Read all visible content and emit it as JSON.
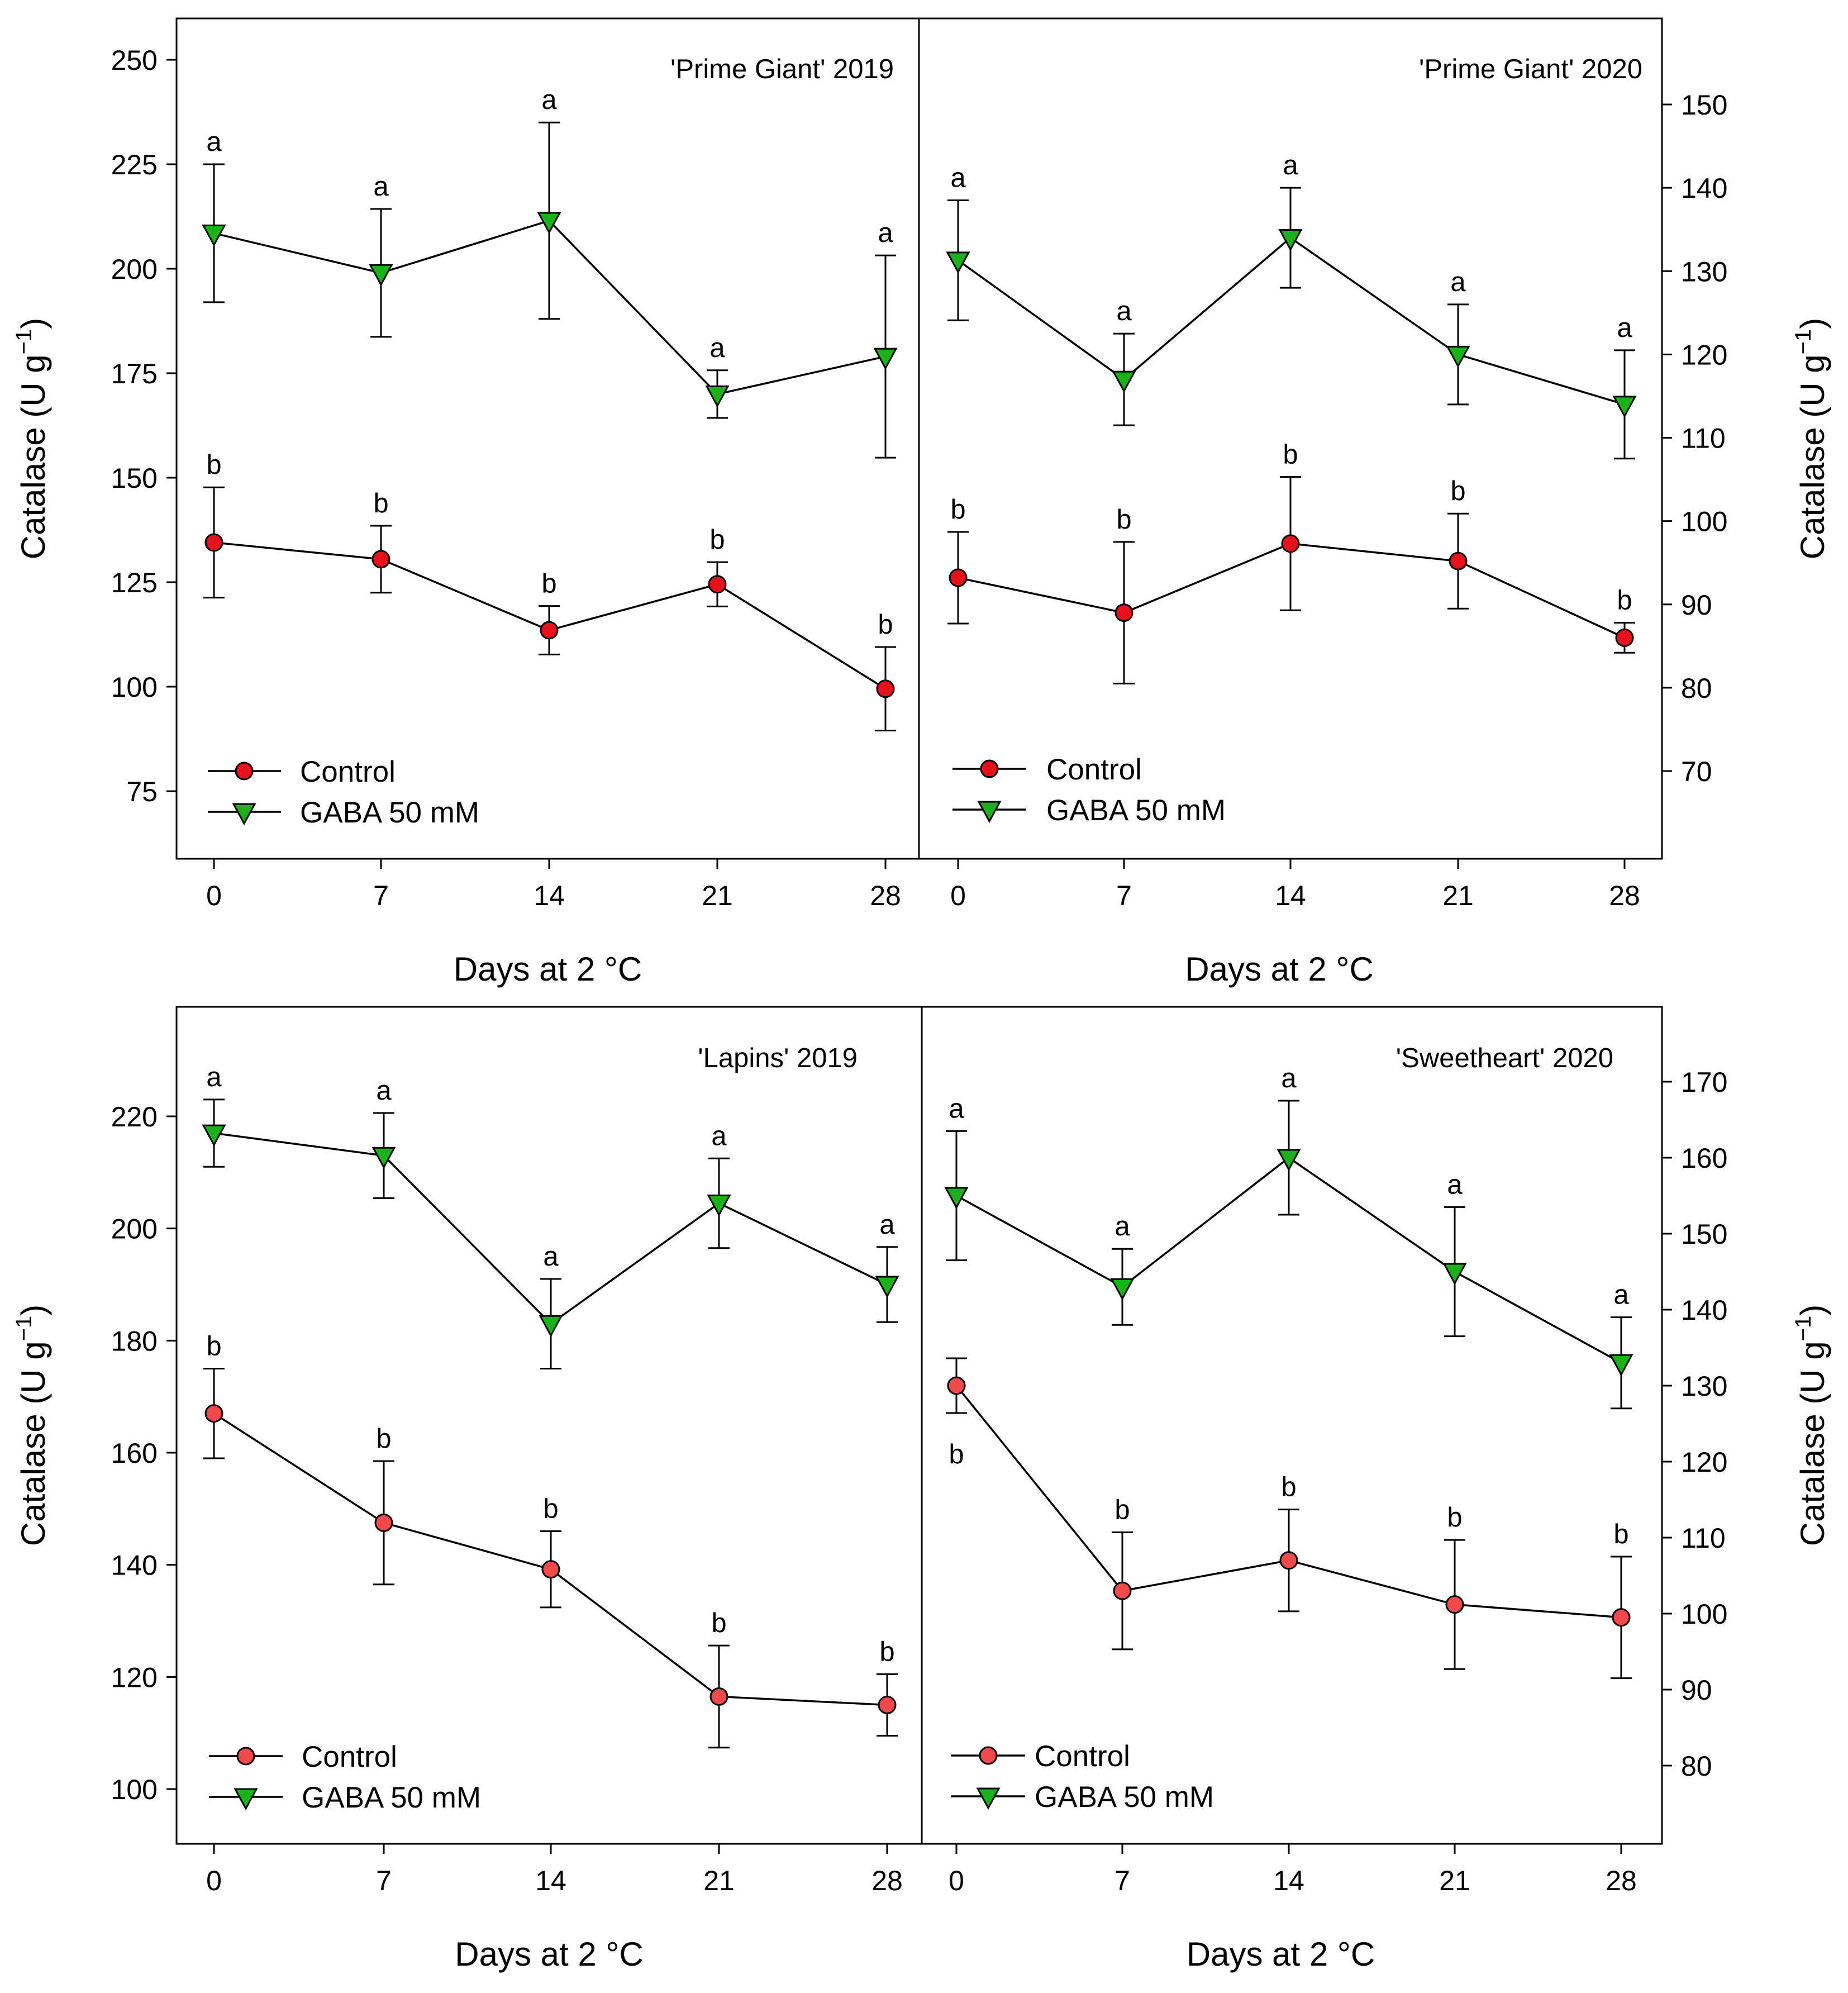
{
  "chart_data": [
    {
      "type": "line",
      "title": "'Prime Giant' 2019",
      "xlabel": "Days at 2 °C",
      "ylabel": "Catalase (U g−1)",
      "y_axis_side": "left",
      "ylim": [
        57,
        258
      ],
      "yticks": [
        75,
        100,
        125,
        150,
        175,
        200,
        225,
        250
      ],
      "x": [
        0,
        7,
        14,
        21,
        28
      ],
      "xticks": [
        0,
        7,
        14,
        21,
        28
      ],
      "series": [
        {
          "name": "Control",
          "marker": "circle",
          "color": "#e8101a",
          "values": [
            134.5,
            130.5,
            113.5,
            124.5,
            99.5
          ],
          "error": [
            13.2,
            8.0,
            5.8,
            5.3,
            10.0
          ],
          "labels": [
            "b",
            "b",
            "b",
            "b",
            "b"
          ]
        },
        {
          "name": "GABA  50 mM",
          "marker": "triangle-down",
          "color": "#19b319",
          "values": [
            208.5,
            199.0,
            211.5,
            170.0,
            179.0
          ],
          "error": [
            16.5,
            15.3,
            23.5,
            5.7,
            24.2
          ],
          "labels": [
            "a",
            "a",
            "a",
            "a",
            "a"
          ]
        }
      ],
      "legend_position": "bottom-left"
    },
    {
      "type": "line",
      "title": "'Prime Giant' 2020",
      "xlabel": "Days at 2 °C",
      "ylabel": "Catalase (U g−1)",
      "y_axis_side": "right",
      "ylim": [
        60,
        160
      ],
      "yticks": [
        70,
        80,
        90,
        100,
        110,
        120,
        130,
        140,
        150
      ],
      "x": [
        0,
        7,
        14,
        21,
        28
      ],
      "xticks": [
        0,
        7,
        14,
        21,
        28
      ],
      "series": [
        {
          "name": "Control",
          "marker": "circle",
          "color": "#e8101a",
          "values": [
            93.2,
            89.0,
            97.3,
            95.2,
            86.0
          ],
          "error": [
            5.5,
            8.5,
            8.0,
            5.7,
            1.8
          ],
          "labels": [
            "b",
            "b",
            "b",
            "b",
            "b"
          ]
        },
        {
          "name": "GABA  50 mM",
          "marker": "triangle-down",
          "color": "#19b319",
          "values": [
            131.3,
            117.0,
            134.0,
            120.0,
            114.0
          ],
          "error": [
            7.2,
            5.5,
            6.0,
            6.0,
            6.5
          ],
          "labels": [
            "a",
            "a",
            "a",
            "a",
            "a"
          ]
        }
      ],
      "legend_position": "bottom-left"
    },
    {
      "type": "line",
      "title": "'Lapins' 2019",
      "xlabel": "Days at 2 °C",
      "ylabel": "Catalase (U g−1)",
      "y_axis_side": "left",
      "ylim": [
        92,
        236
      ],
      "yticks": [
        100,
        120,
        140,
        160,
        180,
        200,
        220
      ],
      "x": [
        0,
        7,
        14,
        21,
        28
      ],
      "xticks": [
        0,
        7,
        14,
        21,
        28
      ],
      "series": [
        {
          "name": "Control",
          "marker": "circle",
          "color": "#f24a4a",
          "values": [
            167.0,
            147.5,
            139.2,
            116.5,
            115.0
          ],
          "error": [
            8.0,
            11.0,
            6.8,
            9.1,
            5.5
          ],
          "labels": [
            "b",
            "b",
            "b",
            "b",
            "b"
          ]
        },
        {
          "name": "GABA 50 mM",
          "marker": "triangle-down",
          "color": "#19b319",
          "values": [
            217.0,
            213.0,
            183.0,
            204.5,
            190.0
          ],
          "error": [
            6.0,
            7.6,
            8.0,
            8.0,
            6.7
          ],
          "labels": [
            "a",
            "a",
            "a",
            "a",
            "a"
          ]
        }
      ],
      "legend_position": "bottom-left"
    },
    {
      "type": "line",
      "title": "'Sweetheart' 2020",
      "xlabel": "Days at 2 °C",
      "ylabel": "Catalase (U g−1)",
      "y_axis_side": "right",
      "ylim": [
        71,
        180
      ],
      "yticks": [
        80,
        90,
        100,
        110,
        120,
        130,
        140,
        150,
        160,
        170
      ],
      "x": [
        0,
        7,
        14,
        21,
        28
      ],
      "xticks": [
        0,
        7,
        14,
        21,
        28
      ],
      "series": [
        {
          "name": "Control",
          "marker": "circle",
          "color": "#f24a4a",
          "values": [
            130.0,
            103.0,
            107.0,
            101.2,
            99.5
          ],
          "error": [
            3.6,
            7.7,
            6.7,
            8.5,
            8.0
          ],
          "labels": [
            "b",
            "b",
            "b",
            "b",
            "b"
          ]
        },
        {
          "name": "GABA 50 mM",
          "marker": "triangle-down",
          "color": "#19b319",
          "values": [
            155.0,
            143.0,
            160.0,
            145.0,
            133.0
          ],
          "error": [
            8.5,
            5.0,
            7.5,
            8.5,
            6.0
          ],
          "labels": [
            "a",
            "a",
            "a",
            "a",
            "a"
          ]
        }
      ],
      "legend_position": "bottom-left"
    }
  ]
}
